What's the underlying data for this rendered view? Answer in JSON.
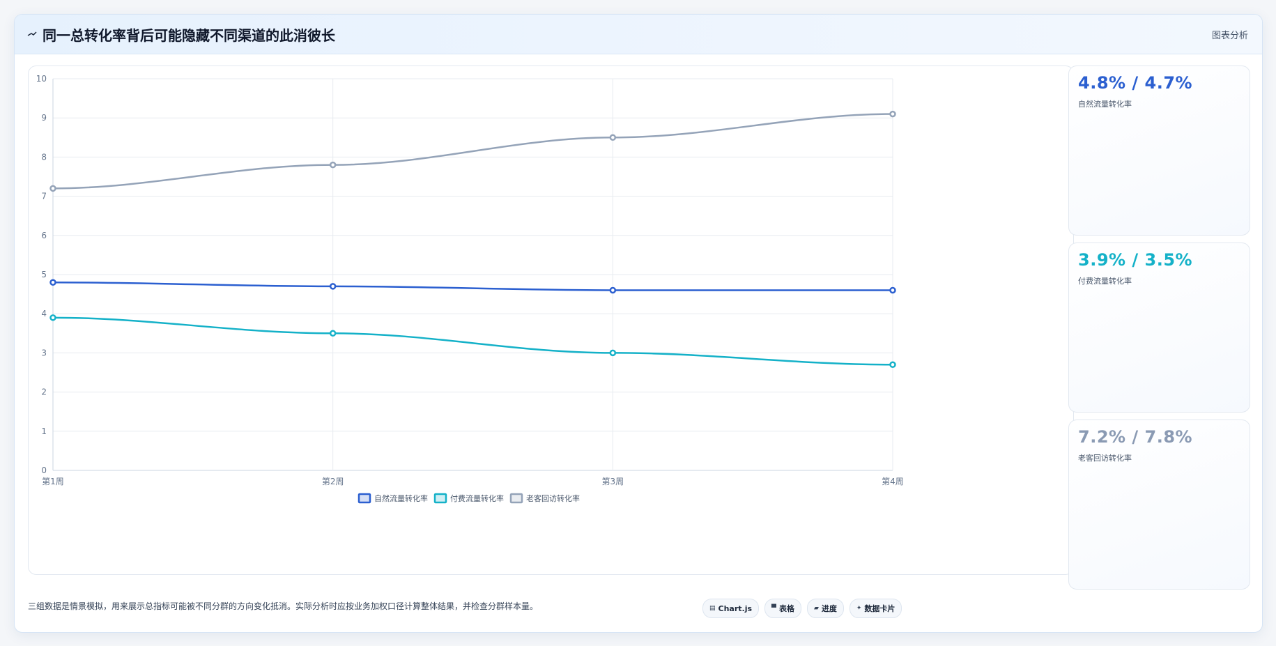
{
  "header": {
    "title": "同一总转化率背后可能隐藏不同渠道的此消彼长",
    "link": "图表分析",
    "icon": "trend-icon"
  },
  "chart_data": {
    "type": "line",
    "categories": [
      "第1周",
      "第2周",
      "第3周",
      "第4周"
    ],
    "ylim": [
      0,
      10
    ],
    "yticks": [
      0,
      1,
      2,
      3,
      4,
      5,
      6,
      7,
      8,
      9,
      10
    ],
    "grid": true,
    "legend_position": "bottom",
    "series": [
      {
        "name": "自然流量转化率",
        "color": "#2b5fd0",
        "values": [
          4.8,
          4.7,
          4.6,
          4.6
        ]
      },
      {
        "name": "付费流量转化率",
        "color": "#14b1c8",
        "values": [
          3.9,
          3.5,
          3.0,
          2.7
        ]
      },
      {
        "name": "老客回访转化率",
        "color": "#94a3b8",
        "values": [
          7.2,
          7.8,
          8.5,
          9.1
        ]
      }
    ]
  },
  "stats": [
    {
      "value": "4.8% / 4.7%",
      "label": "自然流量转化率",
      "color": "#2b5fd0"
    },
    {
      "value": "3.9% / 3.5%",
      "label": "付费流量转化率",
      "color": "#14b1c8"
    },
    {
      "value": "7.2% / 7.8%",
      "label": "老客回访转化率",
      "color": "#8a9ab3"
    }
  ],
  "footnote": "三组数据是情景模拟，用来展示总指标可能被不同分群的方向变化抵消。实际分析时应按业务加权口径计算整体结果，并检查分群样本量。",
  "chips": [
    {
      "icon": "▤",
      "icon_name": "chart-icon",
      "label": "Chart.js"
    },
    {
      "icon": "▀",
      "icon_name": "table-icon",
      "label": "表格"
    },
    {
      "icon": "▰",
      "icon_name": "progress-icon",
      "label": "进度"
    },
    {
      "icon": "✦",
      "icon_name": "sparkle-icon",
      "label": "数据卡片"
    }
  ]
}
